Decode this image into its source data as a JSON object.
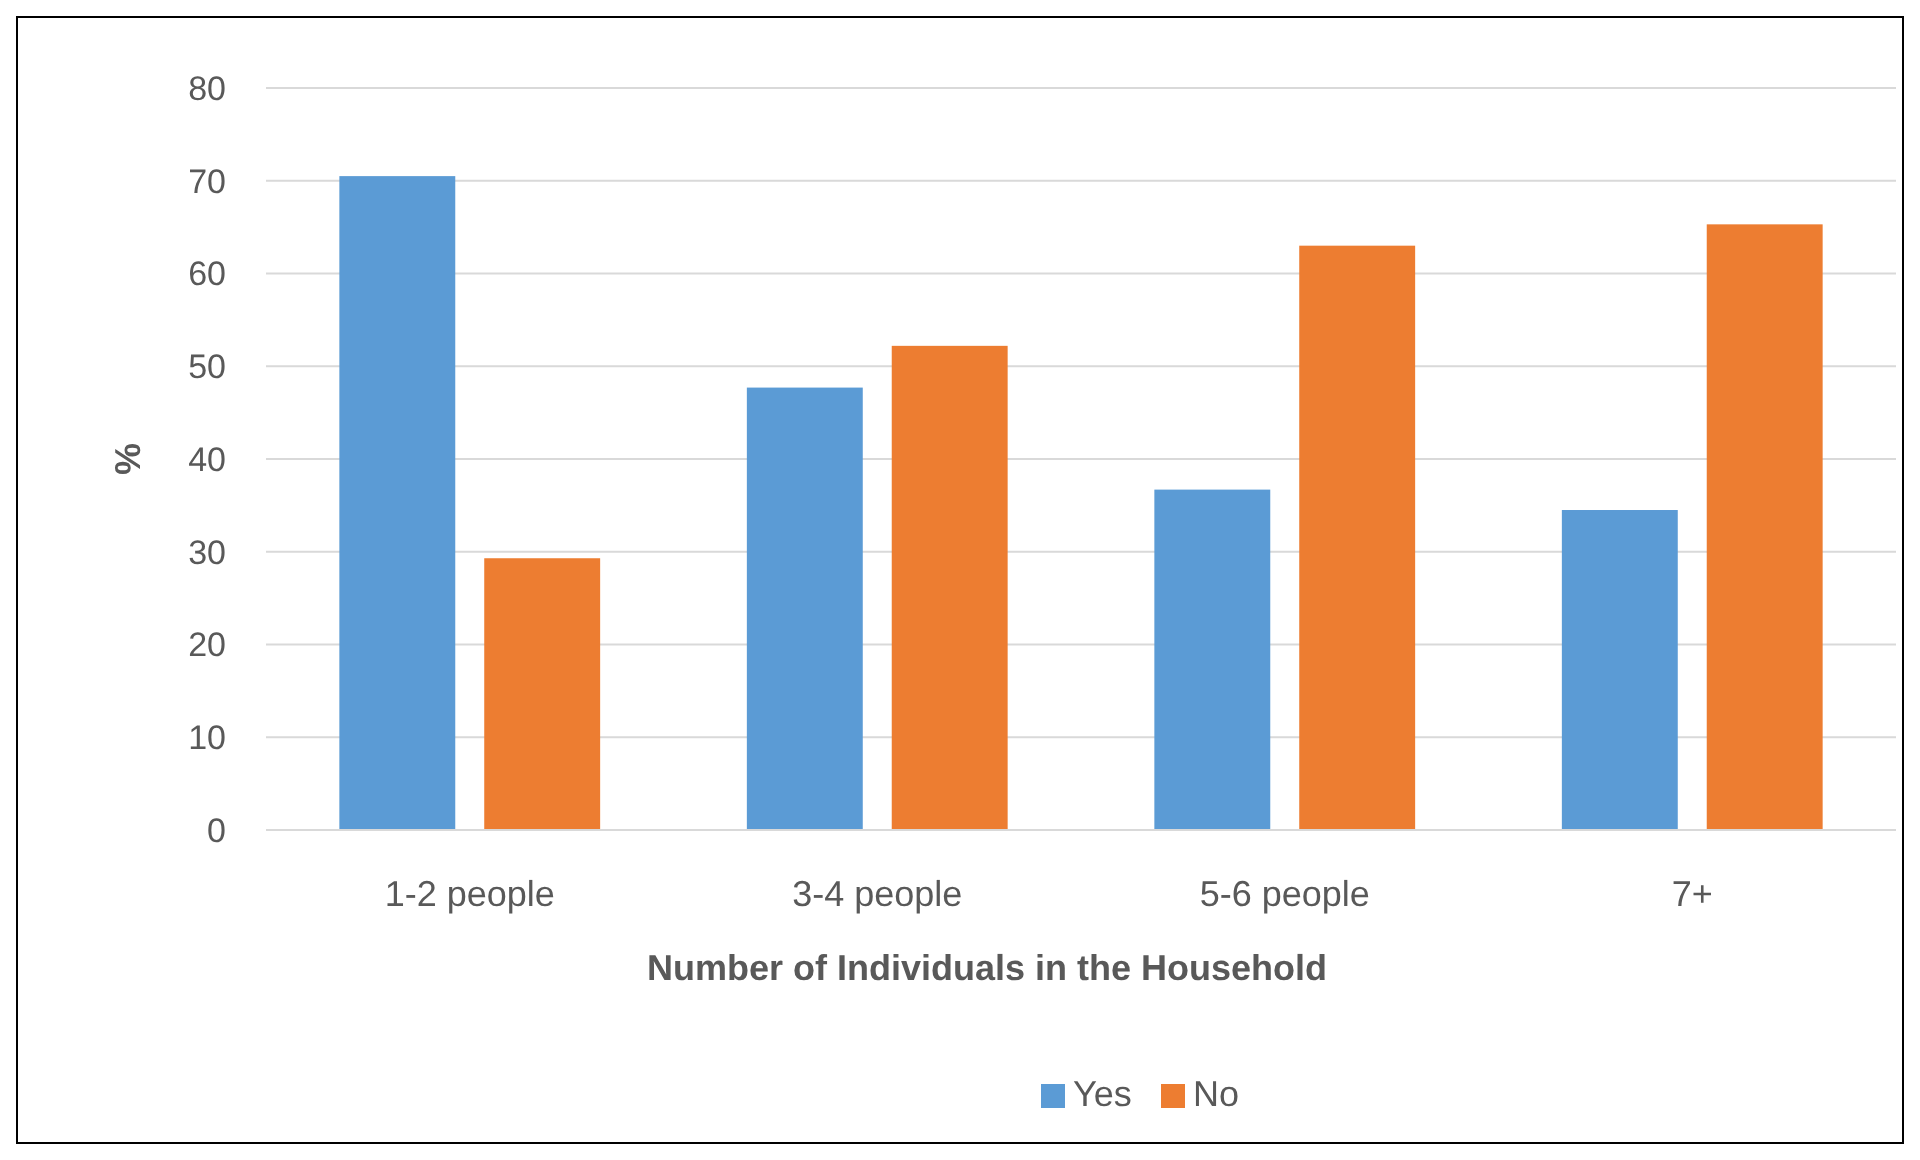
{
  "chart_data": {
    "type": "bar",
    "xlabel": "Number of Individuals in the Household",
    "ylabel": "%",
    "categories": [
      "1-2 people",
      "3-4 people",
      "5-6 people",
      "7+"
    ],
    "series": [
      {
        "name": "Yes",
        "color": "#5b9bd5",
        "values": [
          70.5,
          47.7,
          36.7,
          34.5
        ]
      },
      {
        "name": "No",
        "color": "#ed7d31",
        "values": [
          29.3,
          52.2,
          63.0,
          65.3
        ]
      }
    ],
    "ylim": [
      0,
      80
    ],
    "yticks": [
      0,
      10,
      20,
      30,
      40,
      50,
      60,
      70,
      80
    ],
    "grid": "y",
    "legend": "bottom"
  }
}
